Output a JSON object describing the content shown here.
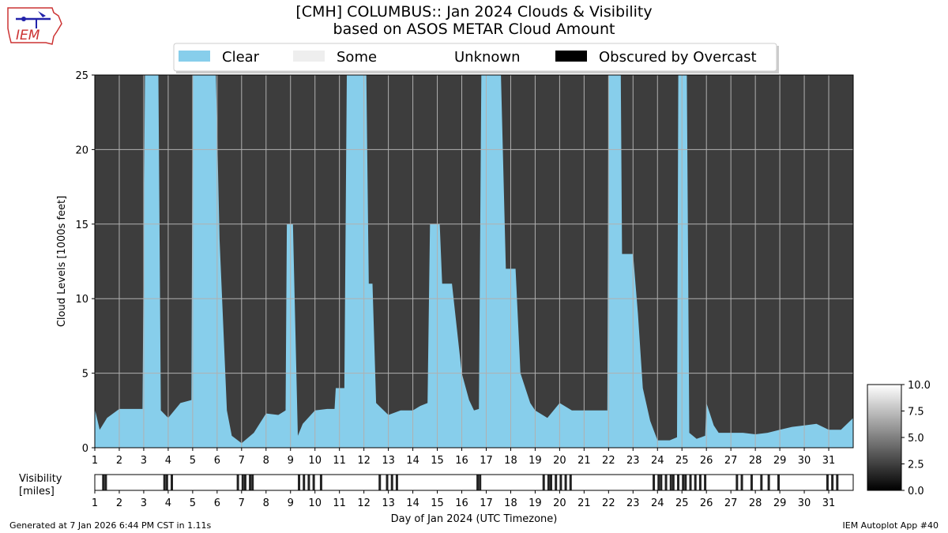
{
  "title": {
    "line1": "[CMH] COLUMBUS:: Jan 2024 Clouds & Visibility",
    "line2": "based on ASOS METAR Cloud Amount"
  },
  "logo": {
    "text": "IEM",
    "icon": "iem-logo"
  },
  "footer": {
    "left": "Generated at 7 Jan 2026 6:44 PM CST in 1.11s",
    "right": "IEM Autoplot App #40"
  },
  "colors": {
    "clear": "#87ceeb",
    "overcast": "#3d3d3d",
    "obscured": "#000000",
    "grid": "#b0b0b0"
  },
  "chart_data": [
    {
      "type": "area",
      "title": "[CMH] COLUMBUS:: Jan 2024 Clouds & Visibility",
      "subtitle": "based on ASOS METAR Cloud Amount",
      "xlabel": "",
      "ylabel": "Cloud Levels [1000s feet]",
      "xlim": [
        1,
        32
      ],
      "ylim": [
        0,
        25
      ],
      "x_ticks": [
        1,
        2,
        3,
        4,
        5,
        6,
        7,
        8,
        9,
        10,
        11,
        12,
        13,
        14,
        15,
        16,
        17,
        18,
        19,
        20,
        21,
        22,
        23,
        24,
        25,
        26,
        27,
        28,
        29,
        30,
        31
      ],
      "y_ticks": [
        0,
        5,
        10,
        15,
        20,
        25
      ],
      "grid": true,
      "legend_placement": "top-center",
      "legend": [
        {
          "label": "Clear",
          "color": "#87ceeb"
        },
        {
          "label": "Some",
          "color": "#eeeeee"
        },
        {
          "label": "Unknown",
          "color": "#ffffff"
        },
        {
          "label": "Obscured by Overcast",
          "color": "#000000"
        }
      ],
      "series": [
        {
          "name": "Clear",
          "points": [
            [
              1,
              2.6
            ],
            [
              1.2,
              1.2
            ],
            [
              1.5,
              2.0
            ],
            [
              2,
              2.6
            ],
            [
              2.5,
              2.6
            ],
            [
              2.95,
              2.6
            ],
            [
              3.05,
              25
            ],
            [
              3.6,
              25
            ],
            [
              3.7,
              2.5
            ],
            [
              4,
              2.0
            ],
            [
              4.5,
              3.0
            ],
            [
              4.95,
              3.2
            ],
            [
              5.0,
              25
            ],
            [
              5.95,
              25
            ],
            [
              6.1,
              14
            ],
            [
              6.4,
              2.5
            ],
            [
              6.6,
              0.8
            ],
            [
              7,
              0.3
            ],
            [
              7.5,
              1.0
            ],
            [
              8,
              2.3
            ],
            [
              8.5,
              2.2
            ],
            [
              8.8,
              2.5
            ],
            [
              8.85,
              15
            ],
            [
              9.1,
              15
            ],
            [
              9.3,
              0.8
            ],
            [
              9.5,
              1.6
            ],
            [
              10,
              2.5
            ],
            [
              10.5,
              2.6
            ],
            [
              10.8,
              2.6
            ],
            [
              10.85,
              4
            ],
            [
              11.2,
              4
            ],
            [
              11.3,
              25
            ],
            [
              12.1,
              25
            ],
            [
              12.2,
              11
            ],
            [
              12.35,
              11
            ],
            [
              12.5,
              3.0
            ],
            [
              13,
              2.2
            ],
            [
              13.5,
              2.5
            ],
            [
              14,
              2.5
            ],
            [
              14.3,
              2.8
            ],
            [
              14.6,
              3.0
            ],
            [
              14.7,
              15
            ],
            [
              15.1,
              15
            ],
            [
              15.2,
              11
            ],
            [
              15.6,
              11
            ],
            [
              15.8,
              8
            ],
            [
              16,
              5
            ],
            [
              16.3,
              3.2
            ],
            [
              16.5,
              2.5
            ],
            [
              16.7,
              2.6
            ],
            [
              16.8,
              25
            ],
            [
              17.6,
              25
            ],
            [
              17.8,
              12
            ],
            [
              18.2,
              12
            ],
            [
              18.4,
              5
            ],
            [
              18.8,
              3.0
            ],
            [
              19,
              2.5
            ],
            [
              19.5,
              2.0
            ],
            [
              20,
              3.0
            ],
            [
              20.5,
              2.5
            ],
            [
              21,
              2.5
            ],
            [
              21.5,
              2.5
            ],
            [
              21.95,
              2.5
            ],
            [
              22.0,
              25
            ],
            [
              22.5,
              25
            ],
            [
              22.55,
              13
            ],
            [
              23,
              13
            ],
            [
              23.2,
              9
            ],
            [
              23.4,
              4
            ],
            [
              23.7,
              1.8
            ],
            [
              24,
              0.5
            ],
            [
              24.5,
              0.5
            ],
            [
              24.8,
              0.7
            ],
            [
              24.85,
              25
            ],
            [
              25.2,
              25
            ],
            [
              25.3,
              1.0
            ],
            [
              25.6,
              0.6
            ],
            [
              25.95,
              0.8
            ],
            [
              26,
              3.0
            ],
            [
              26.3,
              1.5
            ],
            [
              26.5,
              1.0
            ],
            [
              27,
              1.0
            ],
            [
              27.5,
              1.0
            ],
            [
              28,
              0.9
            ],
            [
              28.5,
              1.0
            ],
            [
              29,
              1.2
            ],
            [
              29.5,
              1.4
            ],
            [
              30,
              1.5
            ],
            [
              30.5,
              1.6
            ],
            [
              31,
              1.2
            ],
            [
              31.5,
              1.2
            ],
            [
              32,
              2.0
            ]
          ]
        }
      ]
    },
    {
      "type": "heatmap",
      "ylabel": "Visibility\n[miles]",
      "xlabel": "Day of Jan 2024 (UTC Timezone)",
      "xlim": [
        1,
        32
      ],
      "x_ticks": [
        1,
        2,
        3,
        4,
        5,
        6,
        7,
        8,
        9,
        10,
        11,
        12,
        13,
        14,
        15,
        16,
        17,
        18,
        19,
        20,
        21,
        22,
        23,
        24,
        25,
        26,
        27,
        28,
        29,
        30,
        31
      ],
      "colorbar": {
        "min": 0.0,
        "max": 10.0,
        "ticks": [
          "0.0",
          "2.5",
          "5.0",
          "7.5",
          "10.0"
        ],
        "cmap": "gray"
      },
      "low_visibility_days": [
        1.3,
        1.4,
        3.8,
        3.9,
        4.1,
        6.8,
        7.0,
        7.1,
        7.3,
        7.4,
        9.3,
        9.5,
        9.7,
        9.9,
        10.2,
        12.6,
        12.9,
        13.1,
        13.3,
        16.6,
        16.7,
        19.3,
        19.5,
        19.6,
        19.8,
        20.0,
        20.2,
        20.4,
        23.8,
        24.0,
        24.1,
        24.3,
        24.5,
        24.6,
        24.8,
        25.0,
        25.1,
        25.3,
        25.5,
        25.7,
        25.9,
        27.2,
        27.4,
        27.8,
        28.2,
        28.5,
        28.9,
        30.9,
        31.1,
        31.3
      ]
    }
  ]
}
